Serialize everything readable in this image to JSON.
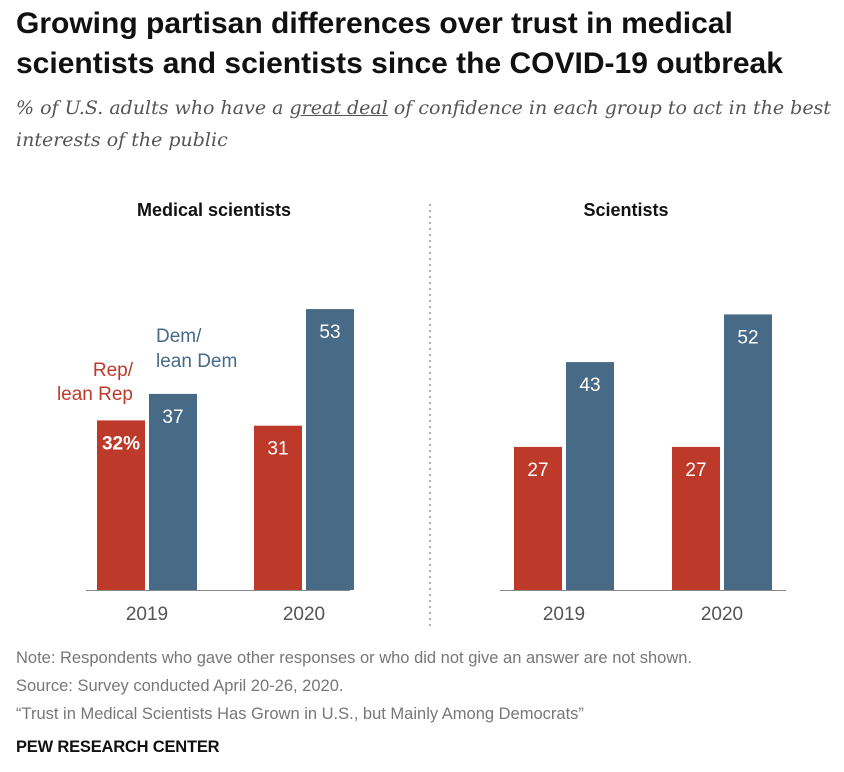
{
  "title": "Growing partisan differences over trust in medical scientists and scientists since the COVID-19 outbreak",
  "subtitle": {
    "before": "% of U.S. adults who have a ",
    "emphasis": "great deal",
    "after": " of confidence in each group to act in the best interests of the public"
  },
  "colors": {
    "rep": "#bd3a2a",
    "dem": "#476a87",
    "axis": "#888888",
    "divider": "#888888"
  },
  "chart_data": [
    {
      "type": "bar",
      "title": "Medical scientists",
      "categories": [
        "2019",
        "2020"
      ],
      "series": [
        {
          "name": "Rep/ lean Rep",
          "label_lines": [
            "Rep/",
            "lean Rep"
          ],
          "values": [
            32,
            31
          ],
          "value_labels": [
            "32%",
            "31"
          ]
        },
        {
          "name": "Dem/ lean Dem",
          "label_lines": [
            "Dem/",
            "lean Dem"
          ],
          "values": [
            37,
            53
          ],
          "value_labels": [
            "37",
            "53"
          ]
        }
      ],
      "ylim": [
        0,
        60
      ]
    },
    {
      "type": "bar",
      "title": "Scientists",
      "categories": [
        "2019",
        "2020"
      ],
      "series": [
        {
          "name": "Rep/ lean Rep",
          "values": [
            27,
            27
          ],
          "value_labels": [
            "27",
            "27"
          ]
        },
        {
          "name": "Dem/ lean Dem",
          "values": [
            43,
            52
          ],
          "value_labels": [
            "43",
            "52"
          ]
        }
      ],
      "ylim": [
        0,
        60
      ]
    }
  ],
  "footer": {
    "note": "Note: Respondents who gave other responses or who did not give an answer are not shown.",
    "source": "Source: Survey conducted April 20-26, 2020.",
    "report": "“Trust in Medical Scientists Has Grown in U.S., but Mainly Among Democrats”",
    "brand": "PEW RESEARCH CENTER"
  }
}
